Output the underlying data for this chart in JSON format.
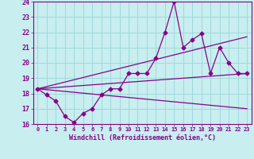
{
  "xlabel": "Windchill (Refroidissement éolien,°C)",
  "bg_color": "#c8eef0",
  "grid_color": "#a0d8dc",
  "line_color": "#880088",
  "xlim": [
    -0.5,
    23.5
  ],
  "ylim": [
    16,
    24
  ],
  "xticks": [
    0,
    1,
    2,
    3,
    4,
    5,
    6,
    7,
    8,
    9,
    10,
    11,
    12,
    13,
    14,
    15,
    16,
    17,
    18,
    19,
    20,
    21,
    22,
    23
  ],
  "yticks": [
    16,
    17,
    18,
    19,
    20,
    21,
    22,
    23,
    24
  ],
  "series1_x": [
    0,
    1,
    2,
    3,
    4,
    5,
    6,
    7,
    8,
    9,
    10,
    11,
    12,
    13,
    14,
    15,
    16,
    17,
    18,
    19,
    20,
    21,
    22,
    23
  ],
  "series1_y": [
    18.3,
    17.9,
    17.5,
    16.5,
    16.1,
    16.7,
    17.0,
    17.9,
    18.3,
    18.3,
    19.3,
    19.3,
    19.3,
    20.3,
    22.0,
    24.0,
    21.0,
    21.5,
    21.9,
    19.3,
    21.0,
    20.0,
    19.3,
    19.3
  ],
  "series2_x": [
    0,
    23
  ],
  "series2_y": [
    18.3,
    19.3
  ],
  "series3_x": [
    0,
    23
  ],
  "series3_y": [
    18.3,
    17.0
  ],
  "series4_x": [
    0,
    23
  ],
  "series4_y": [
    18.3,
    21.7
  ]
}
